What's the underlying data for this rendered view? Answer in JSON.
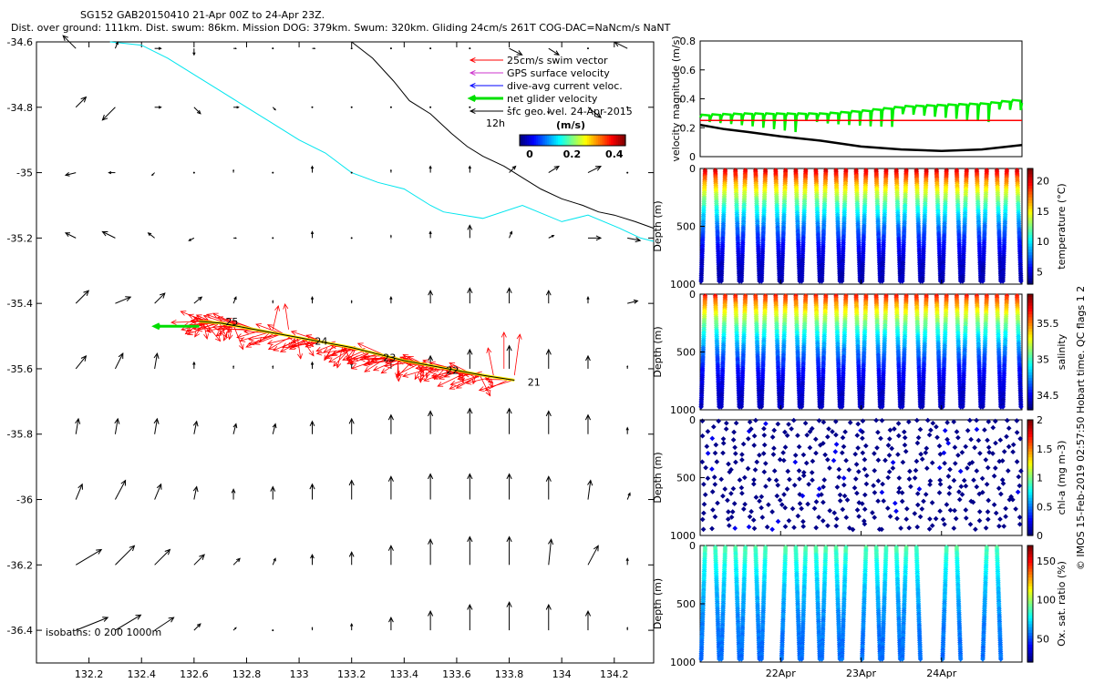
{
  "header": {
    "title": "SG152 GAB20150410 21-Apr 00Z to 24-Apr 23Z.",
    "subtitle": "Dist. over ground: 111km. Dist. swum: 86km. Mission DOG: 379km. Swum: 320km. Gliding 24cm/s 261T COG-DAC=NaNcm/s NaNT"
  },
  "watermark": "© IMOS 15-Feb-2019 02:57:50 Hobart time. QC flags 1  2",
  "chart_data": [
    {
      "type": "map-vector",
      "xlim": [
        132.0,
        134.35
      ],
      "ylim": [
        -36.5,
        -34.6
      ],
      "xticks": [
        132.2,
        132.4,
        132.6,
        132.8,
        133,
        133.2,
        133.4,
        133.6,
        133.8,
        134,
        134.2
      ],
      "yticks": [
        -34.6,
        -34.8,
        -35,
        -35.2,
        -35.4,
        -35.6,
        -35.8,
        -36,
        -36.2,
        -36.4
      ],
      "legend": [
        {
          "label": "25cm/s swim vector",
          "color": "#ff0000"
        },
        {
          "label": "GPS surface velocity",
          "color": "#cc33cc"
        },
        {
          "label": "dive-avg current veloc.",
          "color": "#0000ff"
        },
        {
          "label": "net glider velocity",
          "color": "#00e000"
        },
        {
          "label": "sfc geo. vel. 24-Apr-2015",
          "color": "#000000"
        }
      ],
      "vector_scale_label": "12h",
      "colorbar": {
        "label": "(m/s)",
        "ticks": [
          "0",
          "0.2",
          "0.4"
        ],
        "range": [
          0,
          0.5
        ]
      },
      "isobaths_label": "isobaths: 0   200  1000m",
      "track": {
        "lon": [
          133.82,
          133.7,
          133.6,
          133.5,
          133.4,
          133.3,
          133.2,
          133.1,
          133.0,
          132.9,
          132.8,
          132.7,
          132.62
        ],
        "lat": [
          -35.635,
          -35.62,
          -35.605,
          -35.59,
          -35.575,
          -35.555,
          -35.535,
          -35.52,
          -35.505,
          -35.49,
          -35.475,
          -35.46,
          -35.455
        ]
      },
      "day_labels": [
        {
          "text": "21",
          "lon": 133.87,
          "lat": -35.64
        },
        {
          "text": "22",
          "lon": 133.56,
          "lat": -35.605
        },
        {
          "text": "23",
          "lon": 133.32,
          "lat": -35.565
        },
        {
          "text": "24",
          "lon": 133.06,
          "lat": -35.515
        },
        {
          "text": "25",
          "lon": 132.72,
          "lat": -35.455
        }
      ],
      "net_velocity": {
        "from_lon": 132.62,
        "from_lat": -35.47,
        "to_lon": 132.45,
        "to_lat": -35.47
      },
      "isobath_cyan": {
        "lon": [
          132.28,
          132.4,
          132.5,
          132.6,
          132.7,
          132.8,
          132.88,
          133.0,
          133.1,
          133.2,
          133.3,
          133.4,
          133.5,
          133.55,
          133.7,
          133.85,
          134.0,
          134.1,
          134.22,
          134.3,
          134.35
        ],
        "lat": [
          -34.6,
          -34.61,
          -34.65,
          -34.7,
          -34.75,
          -34.8,
          -34.84,
          -34.9,
          -34.94,
          -35.0,
          -35.03,
          -35.05,
          -35.1,
          -35.12,
          -35.14,
          -35.1,
          -35.15,
          -35.13,
          -35.17,
          -35.2,
          -35.21
        ]
      },
      "isobath_black": {
        "lon": [
          133.2,
          133.28,
          133.36,
          133.42,
          133.5,
          133.58,
          133.64,
          133.7,
          133.78,
          133.86,
          133.92,
          134.0,
          134.08,
          134.14,
          134.2,
          134.28,
          134.35
        ],
        "lat": [
          -34.6,
          -34.65,
          -34.72,
          -34.78,
          -34.82,
          -34.88,
          -34.92,
          -34.95,
          -34.98,
          -35.02,
          -35.05,
          -35.08,
          -35.1,
          -35.12,
          -35.13,
          -35.15,
          -35.17
        ]
      },
      "current_field": {
        "lons": [
          132.0,
          132.15,
          132.3,
          132.45,
          132.6,
          132.75,
          132.9,
          133.05,
          133.2,
          133.35,
          133.5,
          133.65,
          133.8,
          133.95,
          134.1,
          134.25
        ],
        "lats": [
          -34.62,
          -34.8,
          -35.0,
          -35.2,
          -35.4,
          -35.6,
          -35.8,
          -36.0,
          -36.2,
          -36.4
        ],
        "note": "vectors as (u, v) in m/s, row per latitude from north to south",
        "u": [
          [
            0.05,
            -0.1,
            0.02,
            0.05,
            0.0,
            0.02,
            0.0,
            0.02,
            0.0,
            0.0,
            0.0,
            0.0,
            0.1,
            0.08,
            0.0,
            -0.1
          ],
          [
            0.1,
            0.08,
            -0.1,
            0.05,
            0.05,
            0.04,
            0.02,
            0.0,
            0.0,
            0.0,
            0.0,
            0.0,
            0.0,
            0.0,
            0.1,
            0.0
          ],
          [
            -0.1,
            -0.08,
            -0.05,
            -0.02,
            0.0,
            0.0,
            0.0,
            0.0,
            0.0,
            0.0,
            0.0,
            0.0,
            0.05,
            0.08,
            0.1,
            0.0
          ],
          [
            -0.12,
            -0.08,
            -0.1,
            -0.05,
            -0.04,
            0.02,
            0.0,
            0.0,
            0.0,
            0.0,
            0.0,
            0.0,
            0.02,
            0.04,
            0.1,
            0.1
          ],
          [
            0.12,
            0.1,
            0.12,
            0.08,
            0.06,
            0.02,
            0.0,
            0.0,
            0.0,
            0.0,
            0.0,
            0.0,
            0.0,
            0.0,
            0.0,
            0.08
          ],
          [
            0.1,
            0.08,
            0.06,
            0.02,
            0.0,
            0.0,
            0.0,
            0.0,
            0.0,
            0.0,
            0.0,
            0.0,
            0.0,
            0.0,
            0.0,
            0.0
          ],
          [
            0.0,
            0.02,
            0.02,
            0.02,
            0.02,
            0.02,
            0.02,
            0.0,
            0.0,
            0.0,
            0.0,
            0.0,
            0.0,
            0.0,
            0.0,
            0.0
          ],
          [
            0.02,
            0.05,
            0.08,
            0.05,
            0.02,
            0.0,
            0.0,
            0.0,
            0.0,
            0.0,
            0.0,
            0.0,
            0.0,
            0.0,
            0.02,
            0.02
          ],
          [
            0.15,
            0.2,
            0.15,
            0.12,
            0.08,
            0.05,
            0.02,
            0.0,
            0.0,
            0.0,
            0.0,
            0.0,
            0.0,
            0.02,
            0.08,
            0.0
          ],
          [
            0.2,
            0.25,
            0.2,
            0.15,
            0.05,
            0.02,
            0.0,
            0.0,
            0.0,
            0.0,
            0.0,
            0.0,
            0.0,
            0.0,
            0.0,
            0.0
          ]
        ],
        "v": [
          [
            0.05,
            0.1,
            0.05,
            0.0,
            -0.05,
            0.0,
            0.0,
            0.0,
            0.0,
            0.0,
            0.0,
            0.0,
            -0.05,
            -0.05,
            0.0,
            0.05
          ],
          [
            0.05,
            0.08,
            -0.1,
            0.0,
            -0.05,
            0.0,
            -0.02,
            0.0,
            0.0,
            0.0,
            0.0,
            0.0,
            0.0,
            -0.05,
            -0.08,
            0.0
          ],
          [
            0.0,
            -0.02,
            0.0,
            -0.02,
            0.0,
            0.02,
            0.0,
            0.05,
            0.0,
            0.02,
            0.05,
            0.05,
            0.05,
            0.05,
            0.05,
            0.0
          ],
          [
            -0.02,
            0.04,
            0.05,
            0.04,
            -0.02,
            0.0,
            0.0,
            0.05,
            0.0,
            0.02,
            0.05,
            0.1,
            0.05,
            0.02,
            0.0,
            -0.02
          ],
          [
            0.08,
            0.1,
            0.05,
            0.08,
            0.05,
            0.05,
            0.02,
            0.05,
            0.02,
            0.05,
            0.1,
            0.12,
            0.12,
            0.1,
            0.05,
            0.02
          ],
          [
            0.08,
            0.1,
            0.12,
            0.12,
            0.05,
            0.02,
            0.02,
            0.05,
            0.05,
            0.08,
            0.1,
            0.15,
            0.18,
            0.15,
            0.1,
            0.02
          ],
          [
            0.1,
            0.12,
            0.12,
            0.12,
            0.1,
            0.08,
            0.08,
            0.1,
            0.12,
            0.15,
            0.18,
            0.2,
            0.2,
            0.18,
            0.15,
            0.05
          ],
          [
            0.1,
            0.12,
            0.15,
            0.12,
            0.1,
            0.08,
            0.1,
            0.12,
            0.15,
            0.18,
            0.2,
            0.2,
            0.2,
            0.18,
            0.15,
            0.05
          ],
          [
            0.1,
            0.12,
            0.15,
            0.12,
            0.08,
            0.05,
            0.05,
            0.08,
            0.1,
            0.15,
            0.2,
            0.22,
            0.22,
            0.2,
            0.15,
            0.05
          ],
          [
            0.08,
            0.1,
            0.12,
            0.1,
            0.05,
            0.02,
            0.0,
            0.02,
            0.05,
            0.1,
            0.15,
            0.2,
            0.22,
            0.2,
            0.15,
            0.02
          ]
        ]
      }
    },
    {
      "type": "line",
      "ylabel": "velocity magnitude (m/s)",
      "ylim": [
        0,
        0.8
      ],
      "yticks": [
        "0",
        "0.2",
        "0.4",
        "0.6",
        "0.8"
      ],
      "xlim_days": [
        0,
        4
      ],
      "series": [
        {
          "name": "green",
          "color": "#00ee00",
          "x": [
            0.0,
            0.5,
            1.0,
            1.5,
            2.0,
            2.5,
            3.0,
            3.5,
            4.0
          ],
          "y": [
            0.29,
            0.3,
            0.3,
            0.3,
            0.32,
            0.35,
            0.36,
            0.37,
            0.4
          ]
        },
        {
          "name": "red",
          "color": "#ff0000",
          "x": [
            0,
            4
          ],
          "y": [
            0.25,
            0.25
          ]
        },
        {
          "name": "black",
          "color": "#000000",
          "x": [
            0.0,
            0.3,
            0.6,
            1.0,
            1.5,
            2.0,
            2.5,
            3.0,
            3.5,
            4.0
          ],
          "y": [
            0.22,
            0.19,
            0.17,
            0.14,
            0.11,
            0.07,
            0.05,
            0.04,
            0.05,
            0.08
          ]
        }
      ]
    },
    {
      "type": "scatter-profile",
      "colorbar_label": "temperature (°C)",
      "colorbar_ticks": [
        "20",
        "15",
        "10",
        "5"
      ],
      "clim": [
        3,
        22
      ],
      "ylabel": "Depth (m)",
      "yticks": [
        "0",
        "500",
        "1000"
      ],
      "ylim": [
        0,
        1000
      ],
      "surface_value": 21,
      "bottom_value": 4,
      "dives_per_day": 8,
      "gaps_days": []
    },
    {
      "type": "scatter-profile",
      "colorbar_label": "salinity",
      "colorbar_ticks": [
        "35.5",
        "35",
        "34.5"
      ],
      "clim": [
        34.3,
        35.9
      ],
      "ylabel": "Depth (m)",
      "yticks": [
        "0",
        "500",
        "1000"
      ],
      "ylim": [
        0,
        1000
      ],
      "surface_value": 35.7,
      "bottom_value": 34.4,
      "dives_per_day": 8,
      "gaps_days": []
    },
    {
      "type": "scatter-profile",
      "colorbar_label": "chl-a (mg m-3)",
      "colorbar_ticks": [
        "2",
        "1.5",
        "1",
        "0.5",
        "0"
      ],
      "clim": [
        0,
        2
      ],
      "ylabel": "Depth (m)",
      "yticks": [
        "0",
        "500",
        "1000"
      ],
      "ylim": [
        0,
        1000
      ],
      "surface_value": 0.3,
      "bottom_value": 0.02,
      "dives_per_day": 8,
      "sparse": true,
      "gaps_days": []
    },
    {
      "type": "scatter-profile",
      "colorbar_label": "Ox. sat. ratio (%)",
      "colorbar_ticks": [
        "150",
        "100",
        "50"
      ],
      "clim": [
        20,
        170
      ],
      "ylabel": "Depth (m)",
      "yticks": [
        "0",
        "500",
        "1000"
      ],
      "ylim": [
        0,
        1000
      ],
      "surface_value": 90,
      "bottom_value": 55,
      "dives_per_day": 8,
      "gaps_days": [
        [
          0.85,
          1.0
        ],
        [
          1.85,
          2.0
        ],
        [
          2.7,
          2.95
        ],
        [
          3.3,
          3.45
        ],
        [
          3.7,
          3.95
        ]
      ],
      "xticks": [
        "22Apr",
        "23Apr",
        "24Apr"
      ]
    }
  ]
}
